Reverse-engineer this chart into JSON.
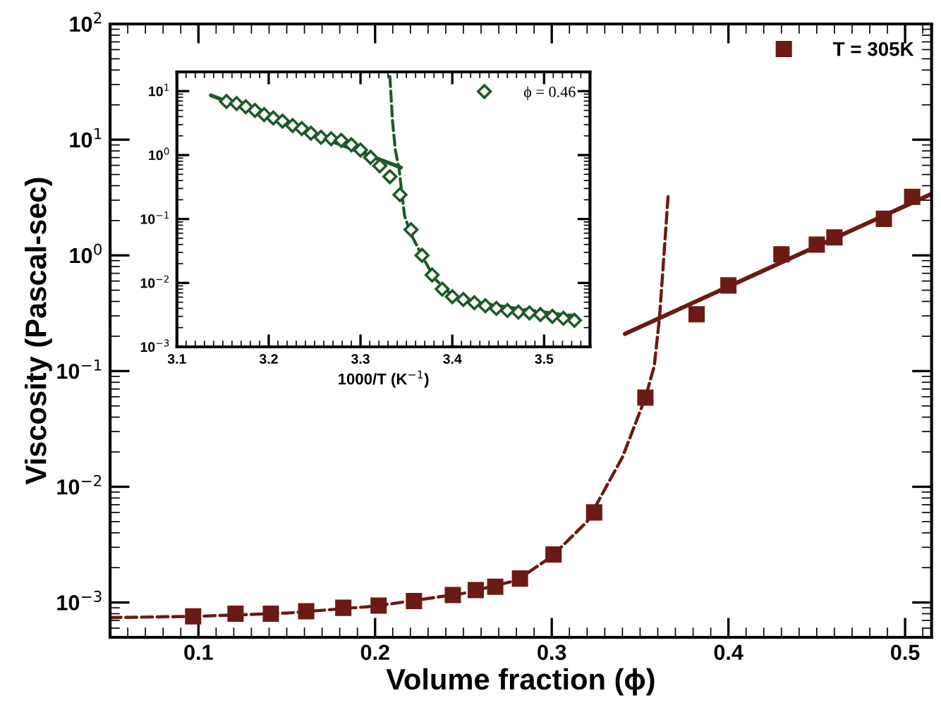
{
  "chart_data": [
    {
      "type": "scatter",
      "xlabel": "Volume fraction (ϕ)",
      "ylabel": "Viscosity (Pascal-sec)",
      "log": "y",
      "grid": false,
      "legend": "top right",
      "xlim": [
        0.05,
        0.515
      ],
      "ylim": [
        0.0005,
        100
      ],
      "xticks": [
        0.1,
        0.2,
        0.3,
        0.4,
        0.5
      ],
      "yticks": [
        {
          "value": 0.001,
          "label": "10$^{−3}$"
        },
        {
          "value": 0.01,
          "label": "10$^{−2}$"
        },
        {
          "value": 0.1,
          "label": "10$^{−1}$"
        },
        {
          "value": 1,
          "label": "10$^{0}$"
        },
        {
          "value": 10,
          "label": "10$^{1}$"
        },
        {
          "value": 100,
          "label": "10$^{2}$"
        }
      ],
      "series": [
        {
          "type": "line",
          "line_style": "dashed",
          "color": "#6b1a14",
          "x": [
            0.05,
            0.1,
            0.15,
            0.2,
            0.25,
            0.28,
            0.3,
            0.32,
            0.34,
            0.353,
            0.358,
            0.361,
            0.366
          ],
          "values": [
            0.00074,
            0.00076,
            0.00081,
            0.00093,
            0.0012,
            0.00155,
            0.0025,
            0.005,
            0.018,
            0.059,
            0.11,
            0.29,
            3.5
          ]
        },
        {
          "type": "line",
          "line_style": "solid",
          "color": "#6b1a14",
          "x": [
            0.3415,
            0.515
          ],
          "values": [
            0.21,
            3.4
          ]
        },
        {
          "name": "T = 305K",
          "marker": "square",
          "color": "#6b1a14",
          "x": [
            0.097,
            0.121,
            0.141,
            0.161,
            0.182,
            0.202,
            0.222,
            0.244,
            0.257,
            0.268,
            0.282,
            0.301,
            0.324,
            0.353,
            0.382,
            0.4,
            0.43,
            0.45,
            0.46,
            0.488,
            0.504
          ],
          "values": [
            0.00076,
            0.0008,
            0.0008,
            0.00084,
            0.0009,
            0.00094,
            0.00103,
            0.00116,
            0.00128,
            0.00137,
            0.00161,
            0.0026,
            0.006,
            0.059,
            0.31,
            0.55,
            1.02,
            1.24,
            1.43,
            2.07,
            3.2
          ]
        }
      ]
    },
    {
      "type": "scatter",
      "xlabel": "1000/T (K$^{−1}$)",
      "log": "y",
      "grid": false,
      "legend": "top right",
      "xlim": [
        3.1,
        3.55
      ],
      "ylim": [
        0.001,
        20
      ],
      "xticks": [
        3.1,
        3.2,
        3.3,
        3.4,
        3.5
      ],
      "yticks": [
        {
          "value": 0.001,
          "label": "10$^{−3}$"
        },
        {
          "value": 0.01,
          "label": "10$^{−2}$"
        },
        {
          "value": 0.1,
          "label": "10$^{−1}$"
        },
        {
          "value": 1,
          "label": "10$^{0}$"
        },
        {
          "value": 10,
          "label": "10$^{1}$"
        }
      ],
      "series": [
        {
          "type": "line",
          "line_style": "solid",
          "color": "#1e5a28",
          "x": [
            3.137,
            3.344
          ],
          "values": [
            8.6,
            0.64
          ]
        },
        {
          "type": "line",
          "line_style": "dashed",
          "color": "#1e5a28",
          "x": [
            3.332,
            3.335,
            3.338,
            3.342,
            3.348,
            3.355,
            3.368,
            3.381,
            3.399,
            3.419,
            3.47,
            3.521,
            3.533
          ],
          "values": [
            17,
            3.2,
            1.18,
            0.61,
            0.112,
            0.058,
            0.025,
            0.0116,
            0.0065,
            0.0052,
            0.004,
            0.0032,
            0.0031
          ]
        },
        {
          "name": "ϕ = 0.46",
          "marker": "diamond",
          "color": "#1e5a28",
          "x": [
            3.154,
            3.165,
            3.175,
            3.185,
            3.195,
            3.205,
            3.215,
            3.226,
            3.236,
            3.246,
            3.257,
            3.268,
            3.279,
            3.29,
            3.3,
            3.311,
            3.321,
            3.332,
            3.343,
            3.355,
            3.367,
            3.378,
            3.389,
            3.4,
            3.412,
            3.424,
            3.436,
            3.448,
            3.46,
            3.472,
            3.484,
            3.496,
            3.509,
            3.521,
            3.533
          ],
          "values": [
            6.9,
            6.4,
            5.7,
            5.0,
            4.3,
            3.8,
            3.4,
            2.9,
            2.6,
            2.2,
            1.9,
            1.8,
            1.7,
            1.45,
            1.2,
            0.92,
            0.68,
            0.46,
            0.24,
            0.068,
            0.027,
            0.0133,
            0.008,
            0.0061,
            0.0055,
            0.0049,
            0.0044,
            0.004,
            0.0037,
            0.0035,
            0.0034,
            0.0032,
            0.003,
            0.0028,
            0.0026
          ]
        }
      ]
    }
  ]
}
